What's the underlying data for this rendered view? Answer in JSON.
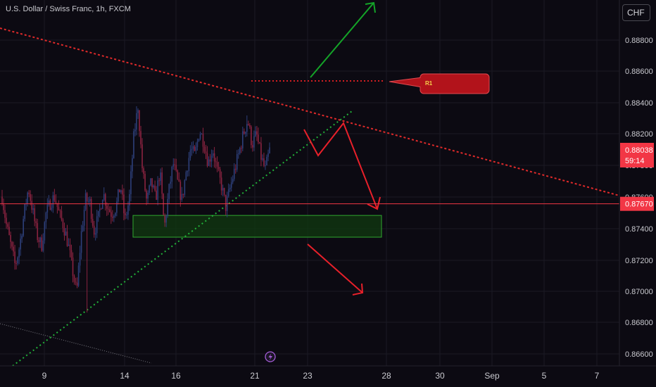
{
  "header": {
    "symbol_title": "U.S. Dollar / Swiss Franc, 1h, FXCM",
    "currency_button": "CHF"
  },
  "price_axis": {
    "labels": [
      "0.88800",
      "0.88600",
      "0.88400",
      "0.88200",
      "0.87800",
      "0.87600",
      "0.87400",
      "0.87200",
      "0.87000",
      "0.86800",
      "0.86600"
    ]
  },
  "current_price": {
    "value": "0.88038",
    "countdown": "59:14",
    "color": "#f23645"
  },
  "horizontal_line": {
    "value": "0.87670",
    "color": "#f23645"
  },
  "time_axis": {
    "labels": [
      "9",
      "14",
      "16",
      "21",
      "23",
      "28",
      "30",
      "Sep",
      "5",
      "7"
    ]
  },
  "annotation": {
    "label": "R1",
    "color": "#b2131b"
  },
  "colors": {
    "background": "#0c0a12",
    "bull_candle": "#2d3f7a",
    "bear_candle": "#8a2340",
    "trendline_resistance": "#e02a2a",
    "trendline_support": "#22b33a",
    "zone_fill": "#103a10",
    "zone_border": "#2fa82f",
    "arrow_red": "#e8202a",
    "arrow_green": "#14a428",
    "lightning_icon": "#a35bd6"
  },
  "chart_data": {
    "type": "candlestick",
    "symbol": "U.S. Dollar / Swiss Franc",
    "interval": "1h",
    "source": "FXCM",
    "x_ticks": [
      "9",
      "14",
      "16",
      "21",
      "23",
      "28",
      "30",
      "Sep",
      "5",
      "7"
    ],
    "y_ticks": [
      0.888,
      0.886,
      0.884,
      0.882,
      0.878,
      0.876,
      0.874,
      0.872,
      0.87,
      0.868,
      0.866
    ],
    "ylim": [
      0.8656,
      0.8902
    ],
    "last_price": 0.88038,
    "horizontal_level": 0.8767,
    "demand_zone": [
      0.8744,
      0.8759
    ],
    "price_path": [
      [
        0.8772,
        0.8752,
        0.8738,
        0.8724,
        0.8738,
        0.876,
        0.8778,
        0.8762,
        0.8745,
        0.8738
      ],
      [
        0.876,
        0.8768,
        0.8772,
        0.876,
        0.8752,
        0.874,
        0.8722,
        0.8705,
        0.8745,
        0.877
      ],
      [
        0.8768,
        0.8748,
        0.8758,
        0.8775,
        0.8765,
        0.876,
        0.8765,
        0.878,
        0.8755,
        0.877
      ],
      [
        0.8812,
        0.8835,
        0.879,
        0.8768,
        0.8782,
        0.877,
        0.879,
        0.875,
        0.8775,
        0.8795
      ],
      [
        0.8782,
        0.877,
        0.879,
        0.8805,
        0.88,
        0.8818,
        0.881,
        0.8795,
        0.8805,
        0.879
      ],
      [
        0.878,
        0.8765,
        0.8778,
        0.879,
        0.8802,
        0.8815,
        0.8825,
        0.8808,
        0.8815,
        0.88,
        0.879,
        0.8804
      ]
    ]
  }
}
